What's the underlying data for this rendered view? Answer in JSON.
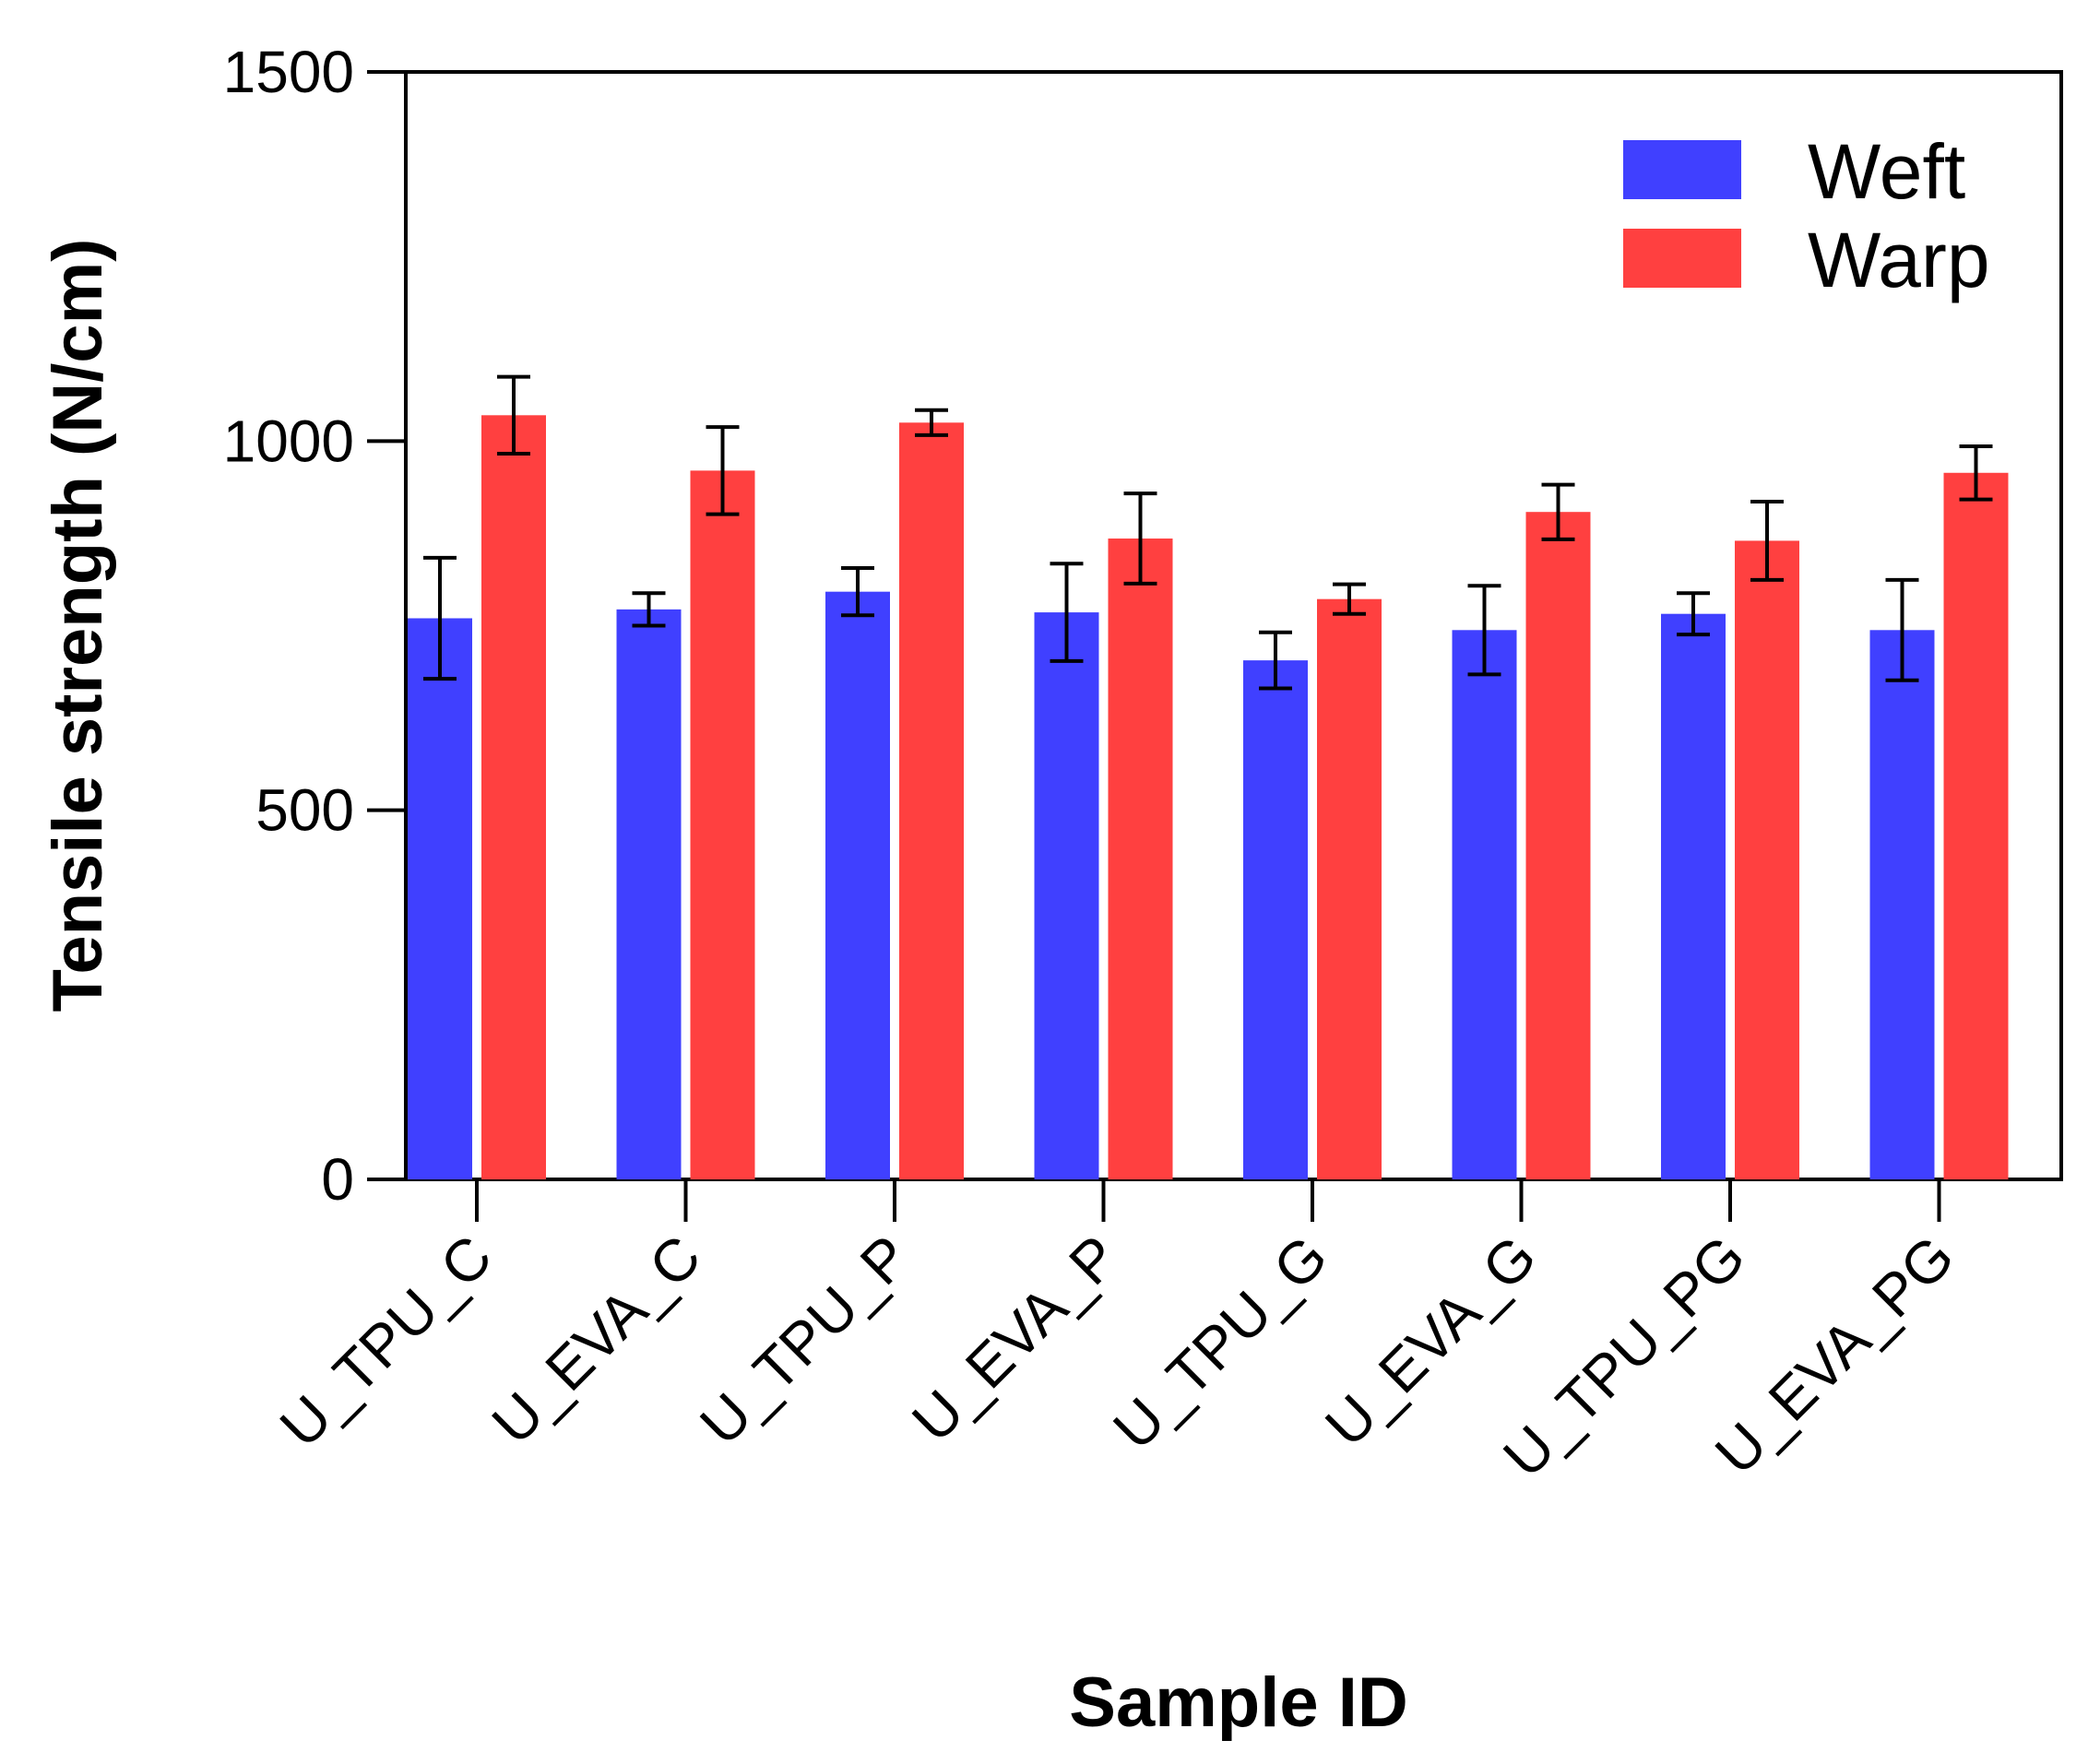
{
  "chart_data": {
    "type": "bar",
    "title": "",
    "xlabel": "Sample ID",
    "ylabel": "Tensile strength (N/cm)",
    "ylim": [
      0,
      1500
    ],
    "yticks": [
      0,
      500,
      1000,
      1500
    ],
    "ytick_labels": [
      "0",
      "500",
      "1000",
      "1500"
    ],
    "categories": [
      "U_TPU_C",
      "U_EVA_C",
      "U_TPU_P",
      "U_EVA_P",
      "U_TPU_G",
      "U_EVA_G",
      "U_TPU_PG",
      "U_EVA_PG"
    ],
    "series": [
      {
        "name": "Weft",
        "color": "#4040ff",
        "values": [
          760,
          772,
          796,
          768,
          703,
          744,
          766,
          744
        ],
        "errors": [
          82,
          22,
          32,
          66,
          38,
          60,
          28,
          68
        ]
      },
      {
        "name": "Warp",
        "color": "#ff4040",
        "values": [
          1035,
          960,
          1025,
          868,
          786,
          904,
          865,
          957
        ],
        "errors": [
          52,
          59,
          17,
          61,
          20,
          37,
          53,
          36
        ]
      }
    ],
    "legend_position": "top-right",
    "grid": false
  }
}
